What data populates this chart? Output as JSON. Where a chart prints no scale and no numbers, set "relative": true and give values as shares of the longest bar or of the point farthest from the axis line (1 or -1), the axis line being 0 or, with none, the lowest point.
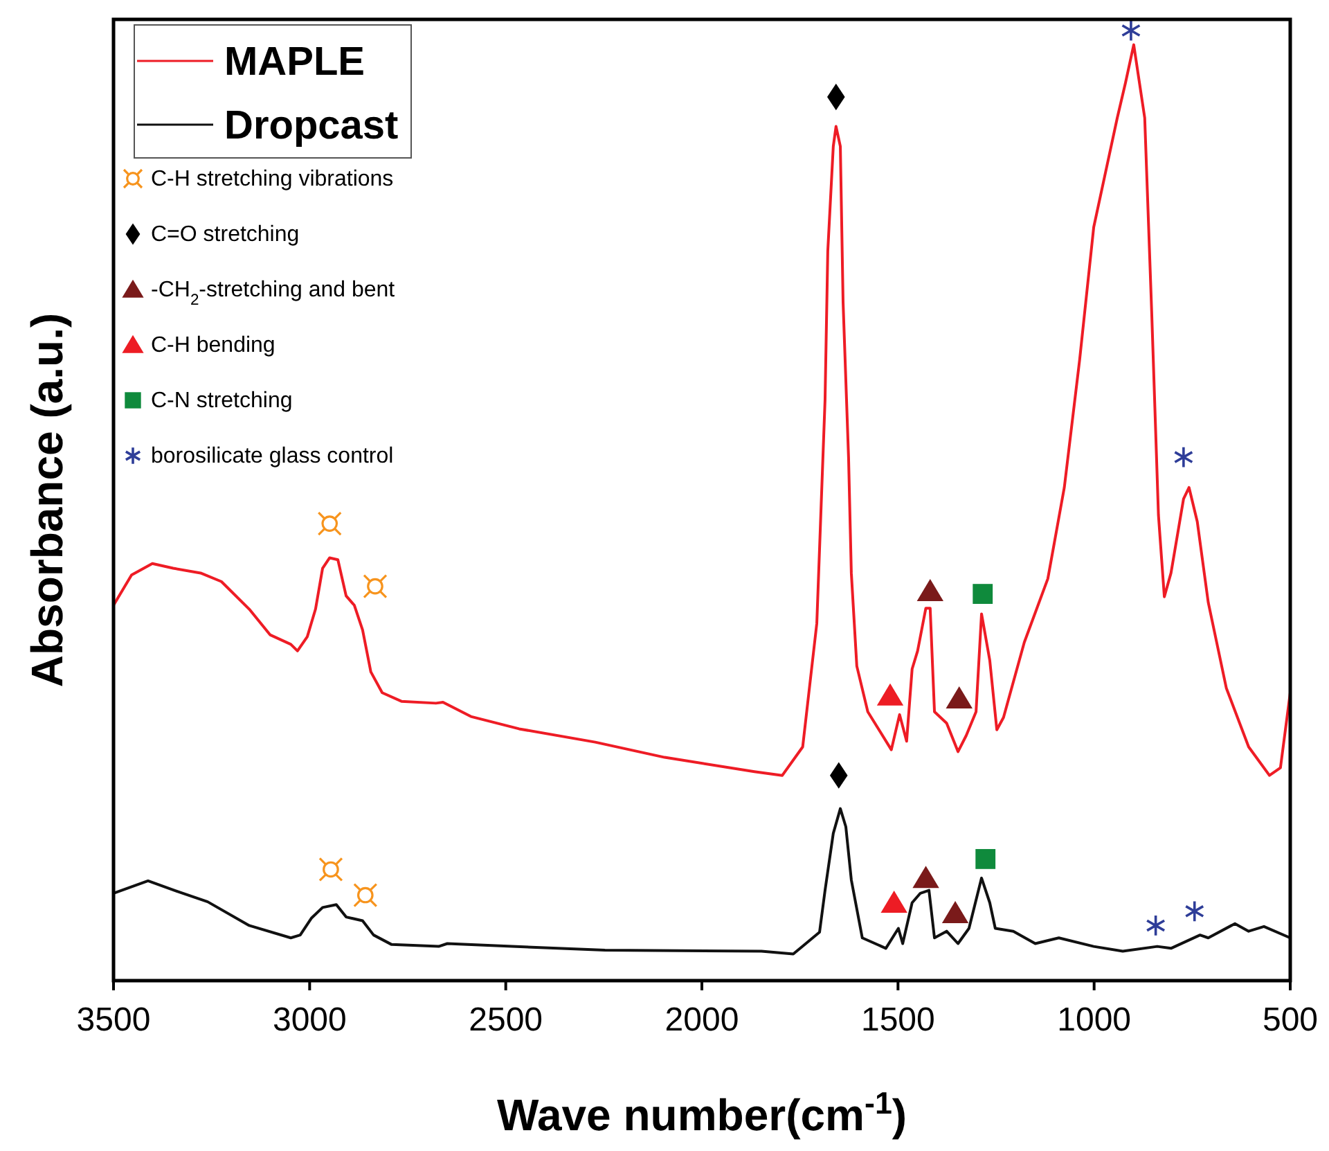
{
  "chart_data": {
    "type": "line",
    "xlabel": "Wave number(cm$^{-1}$)",
    "ylabel": "Absorbance (a.u.)",
    "relative": true,
    "xlim": [
      3500,
      500
    ],
    "xticks": [
      3500,
      3000,
      2500,
      2000,
      1500,
      1000,
      500
    ],
    "tick_labels": "x",
    "legend": "top left",
    "line_style": "solid",
    "series": [
      {
        "name": "MAPLE",
        "color": "#ee1c25",
        "x": [
          3500,
          3454,
          3401,
          3348,
          3278,
          3225,
          3154,
          3101,
          3048,
          3031,
          3006,
          2985,
          2967,
          2949,
          2928,
          2907,
          2886,
          2865,
          2844,
          2815,
          2766,
          2678,
          2660,
          2589,
          2466,
          2272,
          2095,
          1866,
          1795,
          1743,
          1707,
          1686,
          1679,
          1665,
          1658,
          1647,
          1640,
          1626,
          1619,
          1605,
          1577,
          1517,
          1496,
          1478,
          1464,
          1450,
          1429,
          1418,
          1407,
          1376,
          1347,
          1326,
          1301,
          1287,
          1266,
          1248,
          1231,
          1178,
          1118,
          1076,
          1037,
          1001,
          941,
          920,
          899,
          871,
          853,
          836,
          821,
          804,
          772,
          758,
          737,
          709,
          663,
          606,
          553,
          525,
          500
        ],
        "values": [
          0.395,
          0.427,
          0.439,
          0.434,
          0.429,
          0.42,
          0.391,
          0.364,
          0.354,
          0.347,
          0.362,
          0.391,
          0.434,
          0.445,
          0.443,
          0.405,
          0.395,
          0.369,
          0.325,
          0.303,
          0.294,
          0.292,
          0.293,
          0.278,
          0.265,
          0.251,
          0.235,
          0.22,
          0.216,
          0.246,
          0.376,
          0.611,
          0.768,
          0.878,
          0.899,
          0.878,
          0.714,
          0.55,
          0.429,
          0.331,
          0.283,
          0.243,
          0.28,
          0.252,
          0.328,
          0.347,
          0.392,
          0.392,
          0.283,
          0.271,
          0.241,
          0.258,
          0.283,
          0.386,
          0.337,
          0.264,
          0.277,
          0.356,
          0.423,
          0.519,
          0.653,
          0.793,
          0.908,
          0.945,
          0.985,
          0.908,
          0.701,
          0.49,
          0.404,
          0.429,
          0.507,
          0.519,
          0.483,
          0.398,
          0.308,
          0.246,
          0.216,
          0.224,
          0.303
        ]
      },
      {
        "name": "Dropcast",
        "color": "#111111",
        "x": [
          3500,
          3412,
          3331,
          3260,
          3154,
          3048,
          3024,
          2995,
          2967,
          2932,
          2907,
          2865,
          2837,
          2791,
          2671,
          2649,
          2484,
          2247,
          1848,
          1767,
          1735,
          1700,
          1686,
          1665,
          1647,
          1633,
          1619,
          1591,
          1531,
          1499,
          1488,
          1464,
          1443,
          1421,
          1407,
          1376,
          1347,
          1319,
          1287,
          1266,
          1252,
          1206,
          1150,
          1090,
          1001,
          927,
          839,
          804,
          730,
          709,
          641,
          606,
          567,
          500
        ],
        "values": [
          0.092,
          0.105,
          0.093,
          0.083,
          0.058,
          0.045,
          0.048,
          0.066,
          0.077,
          0.08,
          0.067,
          0.063,
          0.048,
          0.038,
          0.036,
          0.039,
          0.036,
          0.032,
          0.031,
          0.028,
          0.039,
          0.051,
          0.095,
          0.155,
          0.181,
          0.162,
          0.106,
          0.045,
          0.034,
          0.055,
          0.039,
          0.082,
          0.092,
          0.095,
          0.045,
          0.052,
          0.039,
          0.055,
          0.108,
          0.082,
          0.055,
          0.052,
          0.039,
          0.045,
          0.036,
          0.031,
          0.036,
          0.034,
          0.048,
          0.045,
          0.06,
          0.052,
          0.057,
          0.045
        ]
      },
      {
        "name": "C-H stretching vibrations",
        "type": "scatter",
        "marker": "circle",
        "color": "#f7941d",
        "x": [
          2949,
          2833,
          2946,
          2858
        ],
        "values": [
          0.481,
          0.415,
          0.117,
          0.09
        ]
      },
      {
        "name": "C=O stretching",
        "type": "scatter",
        "marker": "diamond",
        "color": "#000000",
        "x": [
          1658,
          1651
        ],
        "values": [
          0.93,
          0.216
        ]
      },
      {
        "name": "-CH$_{2}$-stretching and bent",
        "type": "scatter",
        "marker": "triangle",
        "color": "#7a1a1a",
        "x": [
          1418,
          1344,
          1429,
          1354
        ],
        "values": [
          0.41,
          0.297,
          0.108,
          0.071
        ]
      },
      {
        "name": "C-H bending",
        "type": "scatter",
        "marker": "triangle",
        "color": "#ed1c24",
        "x": [
          1520,
          1510
        ],
        "values": [
          0.3,
          0.082
        ]
      },
      {
        "name": "C-N stretching",
        "type": "scatter",
        "marker": "square",
        "color": "#0f8a3c",
        "x": [
          1284,
          1277
        ],
        "values": [
          0.407,
          0.128
        ]
      },
      {
        "name": "borosilicate glass control",
        "type": "scatter",
        "marker": "cross",
        "color": "#2e3d98",
        "x": [
          906,
          772,
          843,
          744
        ],
        "values": [
          1.0,
          0.551,
          0.058,
          0.073
        ]
      }
    ]
  }
}
